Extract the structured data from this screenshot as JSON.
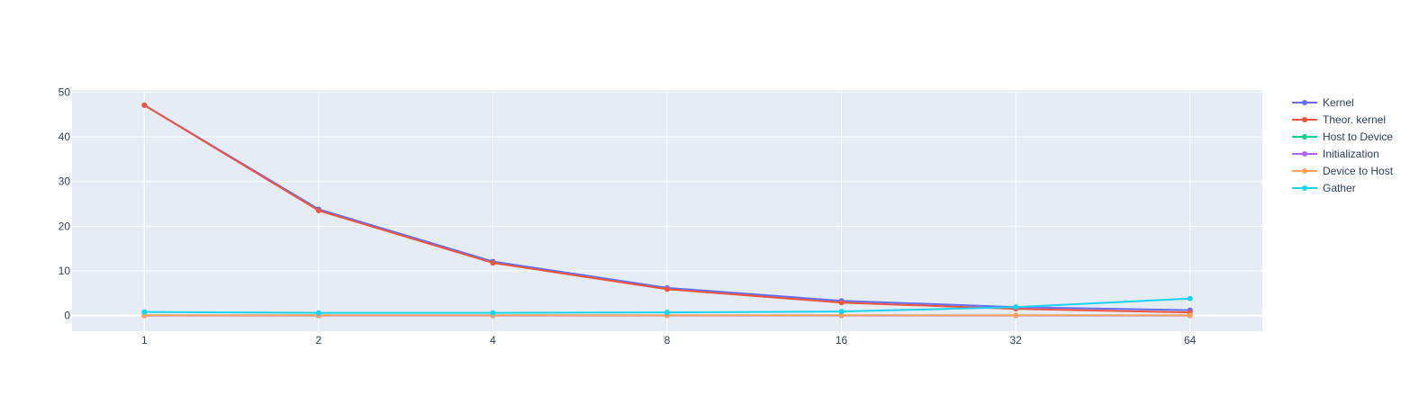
{
  "chart_data": {
    "type": "line",
    "x": [
      1,
      2,
      4,
      8,
      16,
      32,
      64
    ],
    "x_scale": "log2",
    "xlim": [
      0.75,
      85.33
    ],
    "ylim": [
      -3.5,
      50.5
    ],
    "y_ticks": [
      0,
      10,
      20,
      30,
      40,
      50
    ],
    "title": "",
    "xlabel": "",
    "ylabel": "",
    "grid": true,
    "legend_position": "right",
    "plot_bg": "#e5ecf6",
    "series": [
      {
        "name": "Kernel",
        "color": "#636efa",
        "values": [
          47.1,
          23.8,
          12.1,
          6.2,
          3.3,
          1.9,
          1.2
        ]
      },
      {
        "name": "Theor. kernel",
        "color": "#ef553b",
        "values": [
          47.1,
          23.5,
          11.8,
          5.9,
          2.9,
          1.5,
          0.7
        ]
      },
      {
        "name": "Host to Device",
        "color": "#00cc96",
        "values": [
          0.05,
          0.05,
          0.05,
          0.05,
          0.05,
          0.05,
          0.05
        ]
      },
      {
        "name": "Initialization",
        "color": "#ab63fa",
        "values": [
          0.0,
          0.0,
          0.0,
          0.0,
          0.0,
          0.0,
          0.0
        ]
      },
      {
        "name": "Device to Host",
        "color": "#ffa15a",
        "values": [
          0.05,
          0.05,
          0.05,
          0.05,
          0.05,
          0.05,
          0.05
        ]
      },
      {
        "name": "Gather",
        "color": "#19d3f3",
        "values": [
          0.8,
          0.6,
          0.6,
          0.7,
          0.9,
          1.9,
          3.8
        ]
      }
    ]
  }
}
